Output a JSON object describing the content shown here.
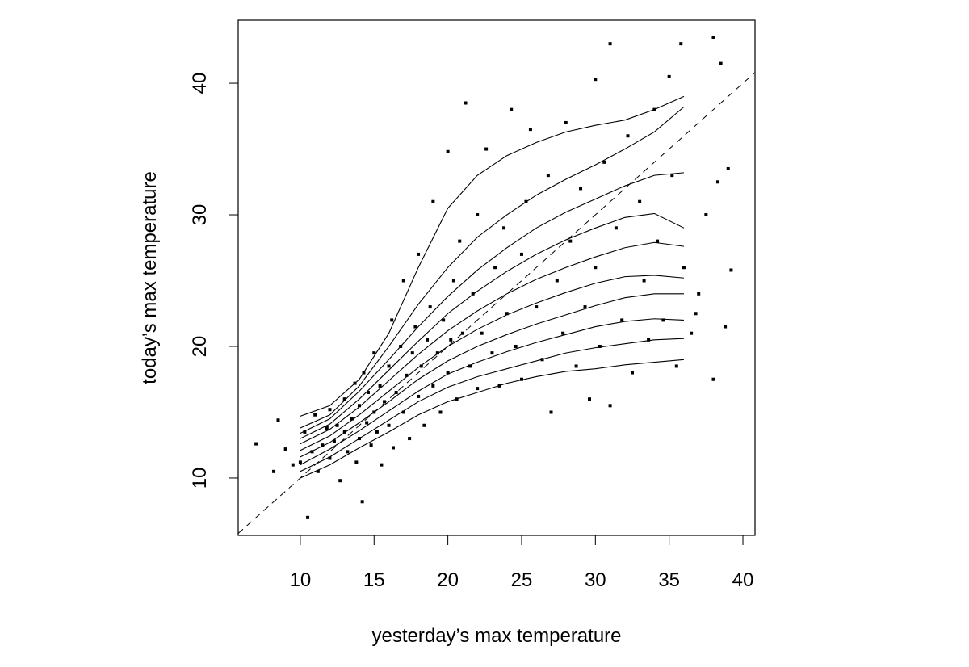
{
  "chart_data": {
    "type": "scatter",
    "x_label": "yesterday’s max temperature",
    "y_label": "today’s max temperature",
    "xlim": [
      5.79,
      40.82
    ],
    "ylim": [
      5.64,
      44.79
    ],
    "xticks": [
      10,
      15,
      20,
      25,
      30,
      35,
      40
    ],
    "yticks": [
      10,
      20,
      30,
      40
    ],
    "color": "#000000",
    "dashed_identity_line": true,
    "x": [
      7,
      8.2,
      8.5,
      9,
      9.5,
      10,
      10.3,
      10.5,
      10.8,
      11,
      11.2,
      11.5,
      11.8,
      12,
      12,
      12.3,
      12.5,
      12.7,
      13,
      13,
      13.2,
      13.5,
      13.7,
      13.8,
      14,
      14,
      14.2,
      14.3,
      14.5,
      14.6,
      14.8,
      15,
      15,
      15.2,
      15.4,
      15.5,
      15.7,
      16,
      16,
      16.2,
      16.3,
      16.5,
      16.8,
      17,
      17,
      17.2,
      17.4,
      17.6,
      17.8,
      18,
      18,
      18.2,
      18.4,
      18.6,
      18.8,
      19,
      19,
      19.3,
      19.5,
      19.7,
      20,
      20,
      20.2,
      20.4,
      20.6,
      20.8,
      21,
      21.2,
      21.5,
      21.7,
      22,
      22,
      22.3,
      22.6,
      23,
      23.2,
      23.5,
      23.8,
      24,
      24.3,
      24.6,
      25,
      25,
      25.3,
      25.6,
      26,
      26.4,
      26.8,
      27,
      27.4,
      27.8,
      28,
      28.3,
      28.7,
      29,
      29.3,
      29.6,
      30,
      30,
      30.3,
      30.6,
      31,
      31,
      31.4,
      31.8,
      32.2,
      32.5,
      33,
      33.3,
      33.6,
      34,
      34.2,
      34.6,
      35,
      35.2,
      35.5,
      35.8,
      36,
      36.5,
      37,
      37.5,
      38,
      38,
      38.5,
      38.8,
      39,
      39.2,
      38.3,
      36.8
    ],
    "y": [
      12.6,
      10.5,
      14.4,
      12.2,
      11,
      11.2,
      13.5,
      7,
      12,
      14.8,
      10.5,
      12.5,
      13.8,
      11.5,
      15.2,
      12.8,
      14,
      9.8,
      13.5,
      16,
      12,
      14.5,
      17.2,
      11.2,
      13,
      15.5,
      8.2,
      18,
      14.2,
      16.5,
      12.5,
      15,
      19.5,
      13.5,
      17,
      11,
      15.8,
      14,
      18.5,
      22,
      12.3,
      16.5,
      20,
      15,
      25,
      17.8,
      13,
      19.5,
      21.5,
      16.2,
      27,
      18.5,
      14,
      20.5,
      23,
      17,
      31,
      19.5,
      15,
      22,
      18,
      34.8,
      20.5,
      25,
      16,
      28,
      21,
      38.5,
      18.5,
      24,
      30,
      16.8,
      21,
      35,
      19.5,
      26,
      17,
      29,
      22.5,
      38,
      20,
      27,
      17.5,
      31,
      36.5,
      23,
      19,
      33,
      15,
      25,
      21,
      37,
      28,
      18.5,
      32,
      23,
      16,
      40.3,
      26,
      20,
      34,
      43,
      15.5,
      29,
      22,
      36,
      18,
      31,
      25,
      20.5,
      38,
      28,
      22,
      40.5,
      33,
      18.5,
      43,
      26,
      21,
      24,
      30,
      43.5,
      17.5,
      41.5,
      21.5,
      33.5,
      25.8,
      32.5,
      22.5
    ],
    "curve_x": [
      10,
      12,
      14,
      16,
      18,
      20,
      22,
      24,
      26,
      28,
      30,
      32,
      34,
      36
    ],
    "curves": [
      {
        "values": [
          10,
          11,
          12.3,
          13.5,
          14.8,
          15.8,
          16.5,
          17.2,
          17.7,
          18.1,
          18.3,
          18.6,
          18.8,
          19
        ]
      },
      {
        "values": [
          10.5,
          11.6,
          13,
          14.4,
          15.8,
          16.9,
          17.7,
          18.3,
          18.9,
          19.5,
          19.9,
          20.2,
          20.5,
          20.6
        ]
      },
      {
        "values": [
          11,
          12.2,
          13.6,
          15.1,
          16.6,
          17.9,
          18.8,
          19.6,
          20.3,
          20.9,
          21.5,
          21.9,
          22.1,
          22
        ]
      },
      {
        "values": [
          11.6,
          12.7,
          14.2,
          15.8,
          17.5,
          18.9,
          20,
          20.9,
          21.7,
          22.4,
          23.1,
          23.7,
          24,
          24
        ]
      },
      {
        "values": [
          12.1,
          13.2,
          14.8,
          16.6,
          18.4,
          20,
          21.3,
          22.4,
          23.3,
          24.1,
          24.8,
          25.3,
          25.4,
          25.2
        ]
      },
      {
        "values": [
          12.6,
          13.7,
          15.4,
          17.4,
          19.4,
          21.2,
          22.7,
          24,
          25.1,
          26,
          26.8,
          27.5,
          27.9,
          27.6
        ]
      },
      {
        "values": [
          13,
          14.1,
          16,
          18.2,
          20.4,
          22.5,
          24.2,
          25.7,
          27,
          28.1,
          29,
          29.8,
          30.1,
          29
        ]
      },
      {
        "values": [
          13.4,
          14.5,
          16.6,
          19,
          21.5,
          23.8,
          25.8,
          27.5,
          29,
          30.2,
          31.2,
          32.2,
          33,
          33.2
        ]
      },
      {
        "values": [
          13.8,
          14.8,
          17,
          20,
          23.2,
          26,
          28.3,
          30,
          31.5,
          32.7,
          33.8,
          35,
          36.3,
          38.2
        ]
      },
      {
        "values": [
          14.7,
          15.5,
          17.5,
          21,
          26,
          30.5,
          33,
          34.5,
          35.5,
          36.3,
          36.8,
          37.2,
          38,
          39
        ]
      }
    ]
  }
}
